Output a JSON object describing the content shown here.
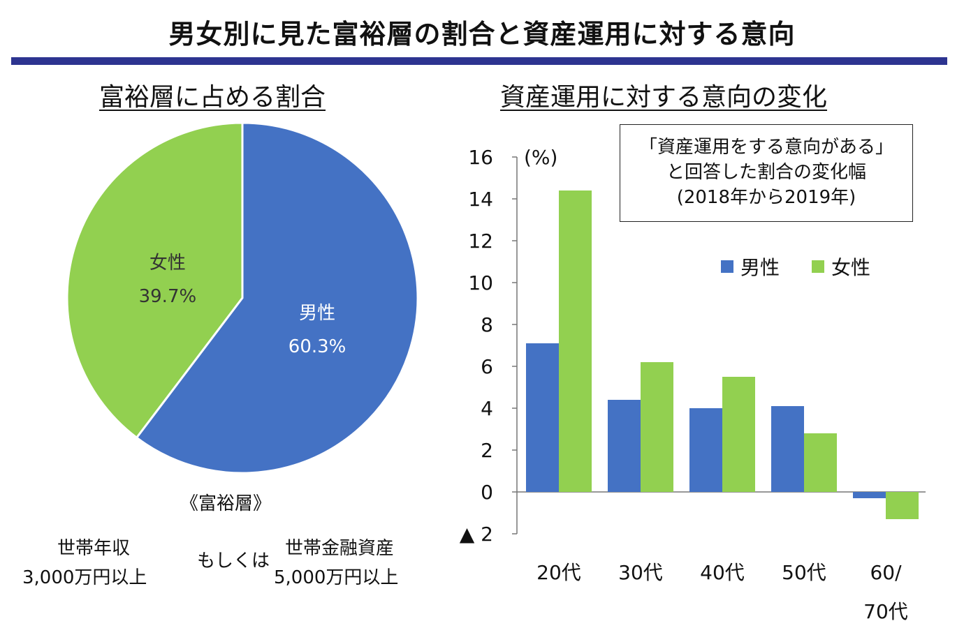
{
  "title": "男女別に見た富裕層の割合と資産運用に対する意向",
  "left": {
    "subtitle": "富裕層に占める割合",
    "definition_heading": "《富裕層》",
    "condition_income_line1": "世帯年収",
    "condition_income_line2": "3,000万円以上",
    "connector": "もしくは",
    "condition_assets_line1": "世帯金融資産",
    "condition_assets_line2": "5,000万円以上"
  },
  "right": {
    "subtitle": "資産運用に対する意向の変化",
    "box_line1": "「資産運用をする意向がある」",
    "box_line2": "と回答した割合の変化幅",
    "box_line3": "(2018年から2019年)",
    "unit": "(%)"
  },
  "colors": {
    "male": "#4472c4",
    "female": "#92d050",
    "title_rule": "#2d3490"
  },
  "chart_data": [
    {
      "type": "pie",
      "categories": [
        "女性",
        "男性"
      ],
      "values": [
        39.7,
        60.3
      ],
      "value_labels": [
        "39.7%",
        "60.3%"
      ],
      "colors": [
        "#92d050",
        "#4472c4"
      ]
    },
    {
      "type": "bar",
      "categories": [
        "20代",
        "30代",
        "40代",
        "50代",
        "60/70代"
      ],
      "category_lines": [
        [
          "20代"
        ],
        [
          "30代"
        ],
        [
          "40代"
        ],
        [
          "50代"
        ],
        [
          "60/",
          "70代"
        ]
      ],
      "series": [
        {
          "name": "男性",
          "values": [
            7.1,
            4.4,
            4.0,
            4.1,
            -0.3
          ],
          "color": "#4472c4"
        },
        {
          "name": "女性",
          "values": [
            14.4,
            6.2,
            5.5,
            2.8,
            -1.3
          ],
          "color": "#92d050"
        }
      ],
      "ylim": [
        -2,
        16
      ],
      "yticks": [
        -2,
        0,
        2,
        4,
        6,
        8,
        10,
        12,
        14,
        16
      ],
      "ytick_labels": [
        "▲ 2",
        "0",
        "2",
        "4",
        "6",
        "8",
        "10",
        "12",
        "14",
        "16"
      ],
      "ylabel": "(%)",
      "legend_position": "top-right"
    }
  ]
}
